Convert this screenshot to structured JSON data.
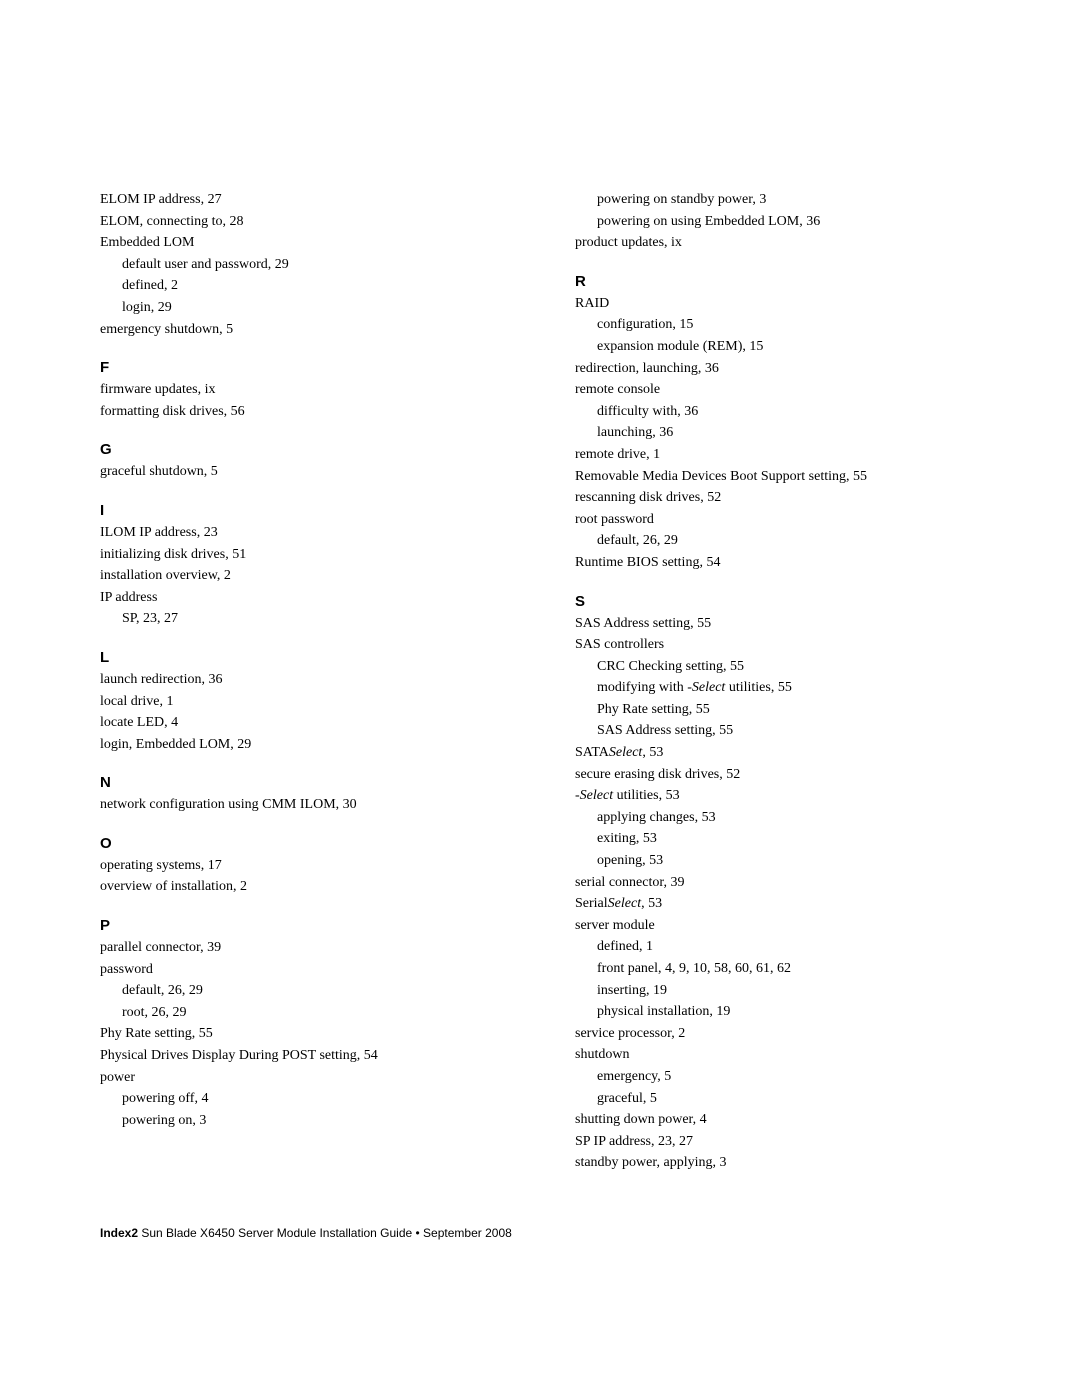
{
  "left": {
    "pre": [
      {
        "t": "ELOM IP address,  27"
      },
      {
        "t": "ELOM, connecting to,  28"
      },
      {
        "t": "Embedded LOM"
      },
      {
        "t": "default user and password,  29",
        "sub": true
      },
      {
        "t": "defined,  2",
        "sub": true
      },
      {
        "t": "login,  29",
        "sub": true
      },
      {
        "t": "emergency shutdown,  5"
      }
    ],
    "F": [
      {
        "t": "firmware updates,  ix"
      },
      {
        "t": "formatting disk drives,  56"
      }
    ],
    "G": [
      {
        "t": "graceful shutdown,  5"
      }
    ],
    "I": [
      {
        "t": "ILOM IP address,  23"
      },
      {
        "t": "initializing disk drives,  51"
      },
      {
        "t": "installation overview,  2"
      },
      {
        "t": "IP address"
      },
      {
        "t": "SP,  23, 27",
        "sub": true
      }
    ],
    "L": [
      {
        "t": "launch redirection,  36"
      },
      {
        "t": "local drive,  1"
      },
      {
        "t": "locate LED,  4"
      },
      {
        "t": "login, Embedded LOM,  29"
      }
    ],
    "N": [
      {
        "t": "network configuration using CMM ILOM,  30"
      }
    ],
    "O": [
      {
        "t": "operating systems,  17"
      },
      {
        "t": "overview of installation,  2"
      }
    ],
    "P": [
      {
        "t": "parallel connector,  39"
      },
      {
        "t": "password"
      },
      {
        "t": "default,  26, 29",
        "sub": true
      },
      {
        "t": "root,  26, 29",
        "sub": true
      },
      {
        "t": "Phy Rate setting,  55"
      },
      {
        "t": "Physical Drives Display During POST setting,  54"
      },
      {
        "t": "power"
      },
      {
        "t": "powering off,  4",
        "sub": true
      },
      {
        "t": "powering on,  3",
        "sub": true
      }
    ]
  },
  "right": {
    "pre": [
      {
        "t": "powering on standby power,  3",
        "sub": true
      },
      {
        "t": "powering on using Embedded LOM,  36",
        "sub": true
      },
      {
        "t": "product updates,  ix"
      }
    ],
    "R": [
      {
        "t": "RAID"
      },
      {
        "t": "configuration,  15",
        "sub": true
      },
      {
        "t": "expansion module (REM),  15",
        "sub": true
      },
      {
        "t": "redirection, launching,  36"
      },
      {
        "t": "remote console"
      },
      {
        "t": "difficulty with,  36",
        "sub": true
      },
      {
        "t": "launching,  36",
        "sub": true
      },
      {
        "t": "remote drive,  1"
      },
      {
        "t": "Removable Media Devices Boot Support setting,  55"
      },
      {
        "t": "rescanning disk drives,  52"
      },
      {
        "t": "root password"
      },
      {
        "t": "default,  26, 29",
        "sub": true
      },
      {
        "t": "Runtime BIOS setting,  54"
      }
    ],
    "S": [
      {
        "t": "SAS Address setting,  55"
      },
      {
        "t": "SAS controllers"
      },
      {
        "t": "CRC Checking setting,  55",
        "sub": true
      },
      {
        "html": "modifying with <span class=\"italic\">-Select</span> utilities,  55",
        "sub": true
      },
      {
        "t": "Phy Rate setting,  55",
        "sub": true
      },
      {
        "t": "SAS Address setting,  55",
        "sub": true
      },
      {
        "html": "SATA<span class=\"italic\">Select</span>,  53"
      },
      {
        "t": "secure erasing disk drives,  52"
      },
      {
        "html": "<span class=\"italic\">-Select</span> utilities,  53"
      },
      {
        "t": "applying changes,  53",
        "sub": true
      },
      {
        "t": "exiting,  53",
        "sub": true
      },
      {
        "t": "opening,  53",
        "sub": true
      },
      {
        "t": "serial connector,  39"
      },
      {
        "html": "Serial<span class=\"italic\">Select</span>,  53"
      },
      {
        "t": "server module"
      },
      {
        "t": "defined,  1",
        "sub": true
      },
      {
        "t": "front panel,  4, 9, 10, 58, 60, 61, 62",
        "sub": true
      },
      {
        "t": "inserting,  19",
        "sub": true
      },
      {
        "t": "physical installation,  19",
        "sub": true
      },
      {
        "t": "service processor,  2"
      },
      {
        "t": "shutdown"
      },
      {
        "t": "emergency,  5",
        "sub": true
      },
      {
        "t": "graceful,  5",
        "sub": true
      },
      {
        "t": "shutting down power,  4"
      },
      {
        "t": "SP IP address,  23, 27"
      },
      {
        "t": "standby power, applying,  3"
      }
    ]
  },
  "footer": {
    "bold": "Index2",
    "rest": " Sun Blade X6450 Server Module Installation Guide  •  September 2008"
  }
}
